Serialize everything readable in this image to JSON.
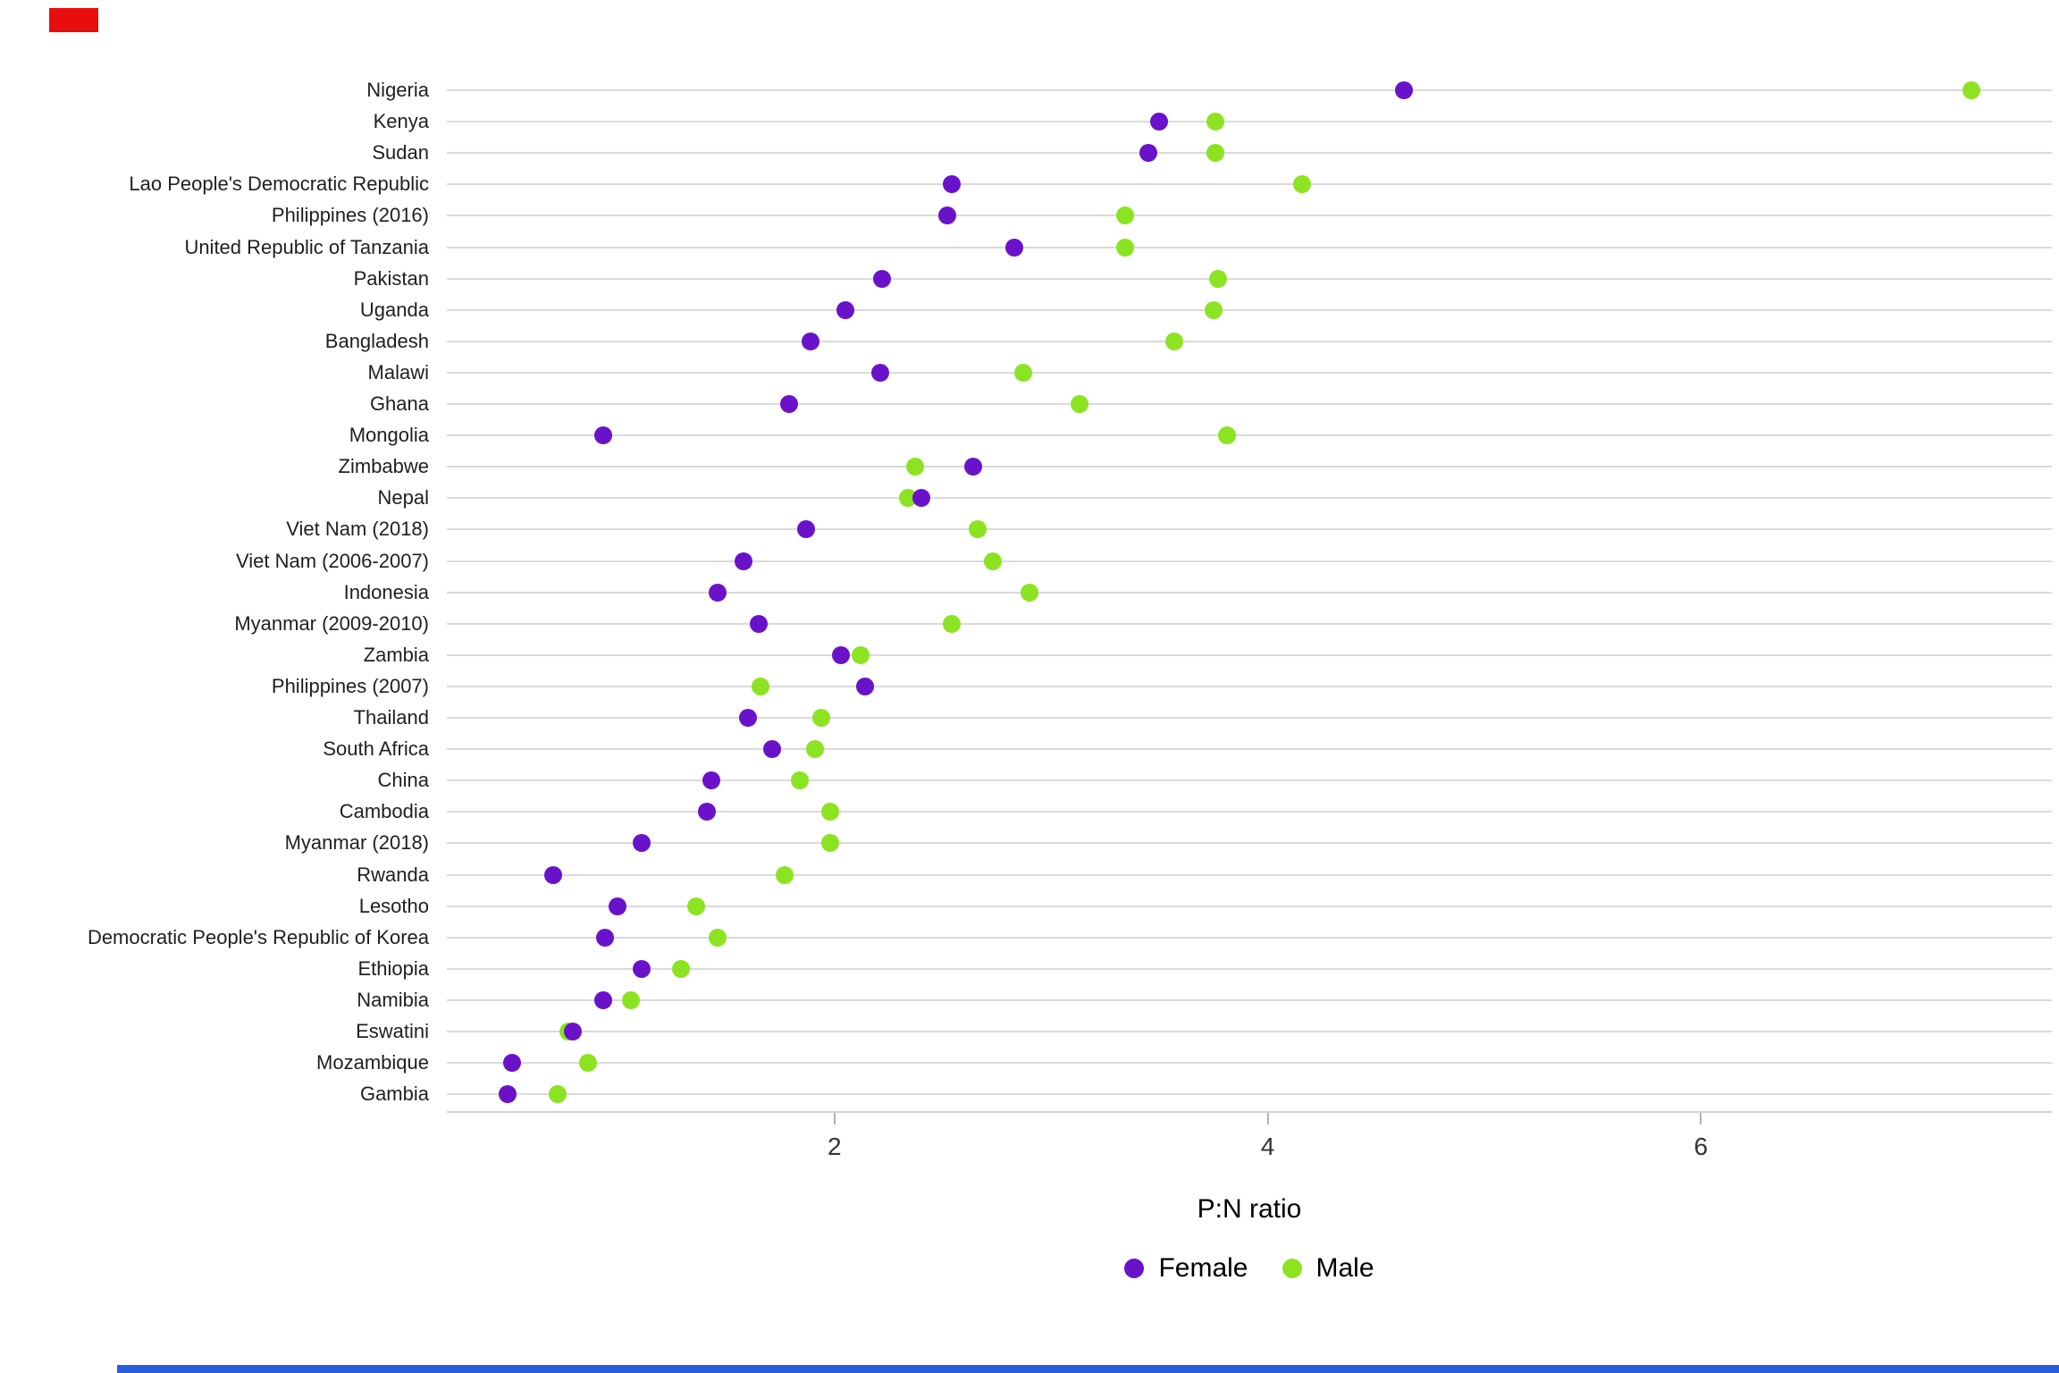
{
  "chart_data": {
    "type": "scatter",
    "subtype": "dot-plot",
    "orientation": "horizontal",
    "title": "",
    "xlabel": "P:N ratio",
    "ylabel": "",
    "xlim": [
      0.21,
      7.62
    ],
    "xticks": [
      2,
      4,
      6
    ],
    "grid": "horizontal",
    "legend_position": "bottom",
    "categories": [
      "Nigeria",
      "Kenya",
      "Sudan",
      "Lao People's Democratic Republic",
      "Philippines (2016)",
      "United Republic of Tanzania",
      "Pakistan",
      "Uganda",
      "Bangladesh",
      "Malawi",
      "Ghana",
      "Mongolia",
      "Zimbabwe",
      "Nepal",
      "Viet Nam (2018)",
      "Viet Nam (2006-2007)",
      "Indonesia",
      "Myanmar (2009-2010)",
      "Zambia",
      "Philippines (2007)",
      "Thailand",
      "South Africa",
      "China",
      "Cambodia",
      "Myanmar (2018)",
      "Rwanda",
      "Lesotho",
      "Democratic People's Republic of Korea",
      "Ethiopia",
      "Namibia",
      "Eswatini",
      "Mozambique",
      "Gambia"
    ],
    "series": [
      {
        "name": "Female",
        "color": "#6a12c9",
        "values": [
          4.63,
          3.5,
          3.45,
          2.54,
          2.52,
          2.83,
          2.22,
          2.05,
          1.89,
          2.21,
          1.79,
          0.93,
          2.64,
          2.4,
          1.87,
          1.58,
          1.46,
          1.65,
          2.03,
          2.14,
          1.6,
          1.71,
          1.43,
          1.41,
          1.11,
          0.7,
          1.0,
          0.94,
          1.11,
          0.93,
          0.79,
          0.51,
          0.49
        ]
      },
      {
        "name": "Male",
        "color": "#8ce321",
        "values": [
          7.25,
          3.76,
          3.76,
          4.16,
          3.34,
          3.34,
          3.77,
          3.75,
          3.57,
          2.87,
          3.13,
          3.81,
          2.37,
          2.34,
          2.66,
          2.73,
          2.9,
          2.54,
          2.12,
          1.66,
          1.94,
          1.91,
          1.84,
          1.98,
          1.98,
          1.77,
          1.36,
          1.46,
          1.29,
          1.06,
          0.77,
          0.86,
          0.72
        ]
      }
    ]
  },
  "legend": {
    "female_label": "Female",
    "male_label": "Male"
  },
  "axis": {
    "x_title": "P:N ratio"
  },
  "colors": {
    "female": "#6a12c9",
    "male": "#8ce321",
    "gridline": "#dadada",
    "axis_line": "#d4d4d4",
    "tick": "#b3b3b3",
    "artifact_red": "#e90e0e",
    "artifact_blue": "#2b5fd9"
  }
}
